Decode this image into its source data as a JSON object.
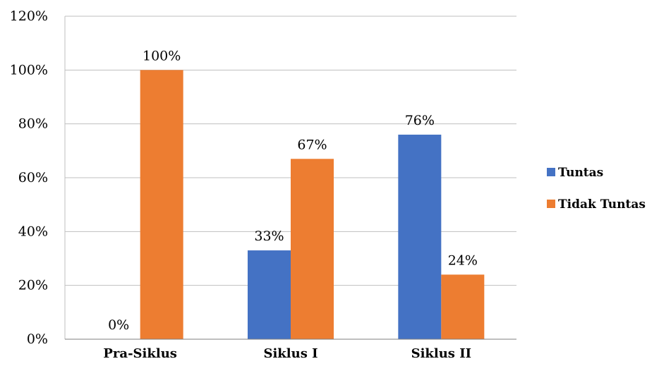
{
  "chart_data": {
    "type": "bar",
    "categories": [
      "Pra-Siklus",
      "Siklus I",
      "Siklus II"
    ],
    "series": [
      {
        "name": "Tuntas",
        "values": [
          0,
          33,
          76
        ],
        "labels": [
          "0%",
          "33%",
          "76%"
        ],
        "color": "#4472C4"
      },
      {
        "name": "Tidak Tuntas",
        "values": [
          100,
          67,
          24
        ],
        "labels": [
          "100%",
          "67%",
          "24%"
        ],
        "color": "#ED7D31"
      }
    ],
    "ylim": [
      0,
      120
    ],
    "yticks": [
      "0%",
      "20%",
      "40%",
      "60%",
      "80%",
      "100%",
      "120%"
    ],
    "grid": true,
    "legend_position": "right",
    "title": "",
    "xlabel": "",
    "ylabel": ""
  }
}
